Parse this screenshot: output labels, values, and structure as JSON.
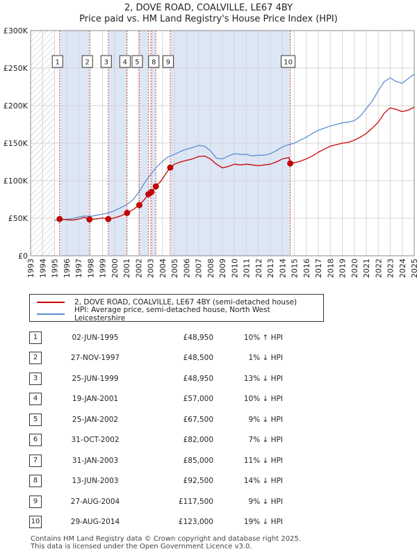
{
  "title": "2, DOVE ROAD, COALVILLE, LE67 4BY",
  "subtitle": "Price paid vs. HM Land Registry's House Price Index (HPI)",
  "colors": {
    "property": "#cc0000",
    "hpi": "#5b8fd0",
    "band": "#dde6f5",
    "hatch": "#bbbbbb",
    "vline": "#dd4444"
  },
  "legend": {
    "property": "2, DOVE ROAD, COALVILLE, LE67 4BY (semi-detached house)",
    "hpi": "HPI: Average price, semi-detached house, North West Leicestershire"
  },
  "chart_data": {
    "type": "line",
    "title": "2, DOVE ROAD, COALVILLE, LE67 4BY",
    "subtitle": "Price paid vs. HM Land Registry's House Price Index (HPI)",
    "xlim": [
      1993,
      2025
    ],
    "ylim": [
      0,
      300000
    ],
    "y_ticks": [
      0,
      50000,
      100000,
      150000,
      200000,
      250000,
      300000
    ],
    "y_tick_labels": [
      "£0",
      "£50K",
      "£100K",
      "£150K",
      "£200K",
      "£250K",
      "£300K"
    ],
    "x_ticks": [
      1993,
      1994,
      1995,
      1996,
      1997,
      1998,
      1999,
      2000,
      2001,
      2002,
      2003,
      2004,
      2005,
      2006,
      2007,
      2008,
      2009,
      2010,
      2011,
      2012,
      2013,
      2014,
      2015,
      2016,
      2017,
      2018,
      2019,
      2020,
      2021,
      2022,
      2023,
      2024,
      2025
    ],
    "data_start": 1995.0,
    "series": [
      {
        "name": "HPI: Average price, semi-detached house, North West Leicestershire",
        "x": [
          1995.0,
          1995.5,
          1996.0,
          1996.5,
          1997.0,
          1997.5,
          1998.0,
          1998.5,
          1999.0,
          1999.5,
          2000.0,
          2000.5,
          2001.0,
          2001.5,
          2002.0,
          2002.5,
          2003.0,
          2003.5,
          2004.0,
          2004.5,
          2005.0,
          2005.5,
          2006.0,
          2006.5,
          2007.0,
          2007.5,
          2008.0,
          2008.5,
          2009.0,
          2009.5,
          2010.0,
          2010.5,
          2011.0,
          2011.5,
          2012.0,
          2012.5,
          2013.0,
          2013.5,
          2014.0,
          2014.5,
          2015.0,
          2015.5,
          2016.0,
          2016.5,
          2017.0,
          2017.5,
          2018.0,
          2018.5,
          2019.0,
          2019.5,
          2020.0,
          2020.5,
          2021.0,
          2021.5,
          2022.0,
          2022.5,
          2023.0,
          2023.5,
          2024.0,
          2024.5,
          2025.0
        ],
        "values": [
          47000,
          48000,
          48500,
          49500,
          51500,
          53000,
          52500,
          54000,
          55500,
          57000,
          60000,
          64000,
          68000,
          74000,
          84000,
          97000,
          108000,
          118000,
          126000,
          132000,
          135000,
          139000,
          142000,
          144000,
          147000,
          146000,
          140000,
          130000,
          129000,
          133000,
          136000,
          135000,
          135000,
          133000,
          134000,
          134000,
          136000,
          140000,
          145000,
          148000,
          150000,
          154000,
          158000,
          163000,
          167000,
          170000,
          173000,
          175000,
          177000,
          178000,
          180000,
          186000,
          196000,
          206000,
          220000,
          232000,
          237000,
          232000,
          230000,
          236000,
          242000
        ]
      },
      {
        "name": "2, DOVE ROAD, COALVILLE, LE67 4BY (semi-detached house)",
        "x": [
          1995.42,
          1996.0,
          1996.5,
          1997.0,
          1997.5,
          1997.91,
          1998.5,
          1999.0,
          1999.48,
          2000.0,
          2000.5,
          2001.05,
          2001.5,
          2002.07,
          2002.5,
          2002.83,
          2003.08,
          2003.45,
          2003.9,
          2004.3,
          2004.65,
          2005.0,
          2005.5,
          2006.0,
          2006.5,
          2007.0,
          2007.5,
          2008.0,
          2008.5,
          2009.0,
          2009.5,
          2010.0,
          2010.5,
          2011.0,
          2011.5,
          2012.0,
          2012.5,
          2013.0,
          2013.5,
          2014.0,
          2014.55,
          2014.66,
          2015.0,
          2015.5,
          2016.0,
          2016.5,
          2017.0,
          2017.5,
          2018.0,
          2018.5,
          2019.0,
          2019.5,
          2020.0,
          2020.5,
          2021.0,
          2021.5,
          2022.0,
          2022.5,
          2023.0,
          2023.5,
          2024.0,
          2024.5,
          2025.0
        ],
        "values": [
          48950,
          48000,
          47500,
          49000,
          51000,
          48500,
          49000,
          50500,
          48950,
          50500,
          53000,
          57000,
          61000,
          67500,
          75000,
          82000,
          85000,
          92500,
          100000,
          110000,
          117500,
          122000,
          125000,
          127000,
          129000,
          132000,
          133000,
          129000,
          122000,
          117000,
          119000,
          122000,
          121000,
          122000,
          121000,
          120000,
          121000,
          122000,
          125000,
          129000,
          131000,
          123000,
          124000,
          126000,
          129000,
          133000,
          138000,
          142000,
          146000,
          148000,
          150000,
          151000,
          154000,
          158000,
          163000,
          170000,
          178000,
          190000,
          197000,
          195000,
          192000,
          194000,
          198000
        ]
      }
    ],
    "sales": [
      {
        "n": "1",
        "year": 1995.42,
        "price": 48950
      },
      {
        "n": "2",
        "year": 1997.91,
        "price": 48500
      },
      {
        "n": "3",
        "year": 1999.48,
        "price": 48950
      },
      {
        "n": "4",
        "year": 2001.05,
        "price": 57000
      },
      {
        "n": "5",
        "year": 2002.07,
        "price": 67500
      },
      {
        "n": "6",
        "year": 2002.83,
        "price": 82000
      },
      {
        "n": "7",
        "year": 2003.08,
        "price": 85000
      },
      {
        "n": "8",
        "year": 2003.45,
        "price": 92500
      },
      {
        "n": "9",
        "year": 2004.65,
        "price": 117500
      },
      {
        "n": "10",
        "year": 2014.66,
        "price": 123000
      }
    ],
    "label_boxes": [
      "1",
      "2",
      "3",
      "4",
      "5",
      "8",
      "9",
      "10"
    ],
    "shaded_ranges": [
      [
        1995.42,
        1997.91
      ],
      [
        1999.48,
        2001.05
      ],
      [
        2002.07,
        2002.83
      ],
      [
        2003.08,
        2003.45
      ],
      [
        2004.65,
        2014.66
      ]
    ]
  },
  "table": [
    {
      "num": "1",
      "date": "02-JUN-1995",
      "price": "£48,950",
      "hpi": "10% ↑ HPI"
    },
    {
      "num": "2",
      "date": "27-NOV-1997",
      "price": "£48,500",
      "hpi": "1% ↓ HPI"
    },
    {
      "num": "3",
      "date": "25-JUN-1999",
      "price": "£48,950",
      "hpi": "13% ↓ HPI"
    },
    {
      "num": "4",
      "date": "19-JAN-2001",
      "price": "£57,000",
      "hpi": "10% ↓ HPI"
    },
    {
      "num": "5",
      "date": "25-JAN-2002",
      "price": "£67,500",
      "hpi": "9% ↓ HPI"
    },
    {
      "num": "6",
      "date": "31-OCT-2002",
      "price": "£82,000",
      "hpi": "7% ↓ HPI"
    },
    {
      "num": "7",
      "date": "31-JAN-2003",
      "price": "£85,000",
      "hpi": "11% ↓ HPI"
    },
    {
      "num": "8",
      "date": "13-JUN-2003",
      "price": "£92,500",
      "hpi": "14% ↓ HPI"
    },
    {
      "num": "9",
      "date": "27-AUG-2004",
      "price": "£117,500",
      "hpi": "9% ↓ HPI"
    },
    {
      "num": "10",
      "date": "29-AUG-2014",
      "price": "£123,000",
      "hpi": "19% ↓ HPI"
    }
  ],
  "footer": {
    "line1": "Contains HM Land Registry data © Crown copyright and database right 2025.",
    "line2": "This data is licensed under the Open Government Licence v3.0."
  }
}
